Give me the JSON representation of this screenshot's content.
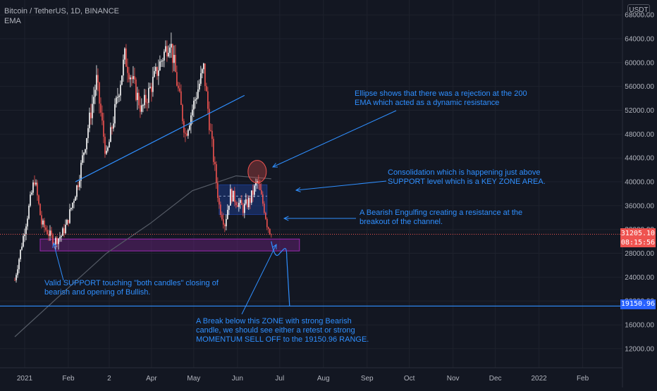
{
  "header": {
    "symbol": "Bitcoin / TetherUS, 1D, BINANCE",
    "indicator": "EMA"
  },
  "currency": "USDT",
  "price_labels": {
    "current": "31205.10",
    "countdown": "08:15:56",
    "target": "19150.96"
  },
  "annotations": [
    {
      "line1": "Ellipse shows that there was a rejection at the 200",
      "line2": "EMA which acted as a dynamic resistance"
    },
    {
      "line1": "Consolidation which is happening just above",
      "line2": "SUPPORT level which is a KEY ZONE AREA."
    },
    {
      "line1": "A Bearish Engulfing creating a resistance at the",
      "line2": "breakout of the channel."
    },
    {
      "line1": "Valid SUPPORT touching \"both candles\" closing of",
      "line2": "bearish and opening of Bullish."
    },
    {
      "line1": "A Break below this ZONE with strong Bearish",
      "line2": "candle, we should see either a retest or strong",
      "line3": "MOMENTUM SELL OFF to the 19150.96 RANGE."
    }
  ],
  "colors": {
    "background": "#131722",
    "up": "#ffffff",
    "down": "#ef5350",
    "annotation": "#2f8fff",
    "support_zone": "#9c27b0",
    "ema": "#555b66",
    "price_line": "#ef5350"
  },
  "chart_data": {
    "type": "candlestick",
    "title": "Bitcoin / TetherUS, 1D, BINANCE",
    "indicator": "EMA",
    "y_axis": {
      "ticks": [
        12000,
        16000,
        20000,
        24000,
        28000,
        32000,
        36000,
        40000,
        44000,
        48000,
        52000,
        56000,
        60000,
        64000,
        68000
      ],
      "range": [
        8800,
        70500
      ]
    },
    "x_axis": {
      "ticks": [
        {
          "label": "2021",
          "date": "2021-01-01"
        },
        {
          "label": "Feb",
          "date": "2021-02-01"
        },
        {
          "label": "2",
          "date": "2021-03-02"
        },
        {
          "label": "Apr",
          "date": "2021-04-01"
        },
        {
          "label": "May",
          "date": "2021-05-01"
        },
        {
          "label": "Jun",
          "date": "2021-06-01"
        },
        {
          "label": "Jul",
          "date": "2021-07-01"
        },
        {
          "label": "Aug",
          "date": "2021-08-01"
        },
        {
          "label": "Sep",
          "date": "2021-09-01"
        },
        {
          "label": "Oct",
          "date": "2021-10-01"
        },
        {
          "label": "Nov",
          "date": "2021-11-01"
        },
        {
          "label": "Dec",
          "date": "2021-12-01"
        },
        {
          "label": "2022",
          "date": "2022-01-01"
        },
        {
          "label": "Feb",
          "date": "2022-02-01"
        }
      ]
    },
    "key_points": [
      {
        "date": "2020-12-25",
        "price": 23500
      },
      {
        "date": "2021-01-08",
        "price": 40500
      },
      {
        "date": "2021-01-13",
        "price": 33000
      },
      {
        "date": "2021-01-22",
        "price": 30000
      },
      {
        "date": "2021-01-27",
        "price": 31000
      },
      {
        "date": "2021-01-31",
        "price": 33000
      },
      {
        "date": "2021-02-08",
        "price": 40000
      },
      {
        "date": "2021-02-21",
        "price": 57000
      },
      {
        "date": "2021-02-28",
        "price": 44000
      },
      {
        "date": "2021-03-13",
        "price": 61000
      },
      {
        "date": "2021-03-25",
        "price": 52000
      },
      {
        "date": "2021-04-14",
        "price": 64000
      },
      {
        "date": "2021-04-25",
        "price": 48000
      },
      {
        "date": "2021-05-08",
        "price": 59000
      },
      {
        "date": "2021-05-12",
        "price": 50000
      },
      {
        "date": "2021-05-19",
        "price": 36000
      },
      {
        "date": "2021-05-23",
        "price": 33000
      },
      {
        "date": "2021-05-27",
        "price": 38000
      },
      {
        "date": "2021-06-05",
        "price": 35500
      },
      {
        "date": "2021-06-10",
        "price": 37000
      },
      {
        "date": "2021-06-15",
        "price": 40000
      },
      {
        "date": "2021-06-20",
        "price": 35500
      },
      {
        "date": "2021-06-22",
        "price": 33000
      },
      {
        "date": "2021-06-25",
        "price": 31205.1
      }
    ],
    "ema_200": [
      {
        "date": "2020-12-25",
        "price": 14000
      },
      {
        "date": "2021-01-31",
        "price": 22000
      },
      {
        "date": "2021-02-28",
        "price": 28000
      },
      {
        "date": "2021-03-31",
        "price": 33000
      },
      {
        "date": "2021-04-30",
        "price": 38500
      },
      {
        "date": "2021-05-31",
        "price": 41000
      },
      {
        "date": "2021-06-25",
        "price": 40500
      }
    ],
    "current_price": 31205.1,
    "target_price": 19150.96,
    "support_zone": {
      "top": 30400,
      "bottom": 28400,
      "from": "2021-01-12",
      "to": "2021-07-15"
    },
    "consolidation_box": {
      "top": 39500,
      "bottom": 34500,
      "from": "2021-05-19",
      "to": "2021-06-22"
    },
    "rejection_ellipse": {
      "date": "2021-06-15",
      "price": 41700
    },
    "trendline": {
      "from": {
        "date": "2021-02-06",
        "price": 40000
      },
      "to": {
        "date": "2021-06-06",
        "price": 54500
      }
    },
    "projection": [
      {
        "date": "2021-06-25",
        "price": 30000
      },
      {
        "date": "2021-07-01",
        "price": 28000
      },
      {
        "date": "2021-07-06",
        "price": 28500
      },
      {
        "date": "2021-07-08",
        "price": 19150.96
      }
    ]
  }
}
